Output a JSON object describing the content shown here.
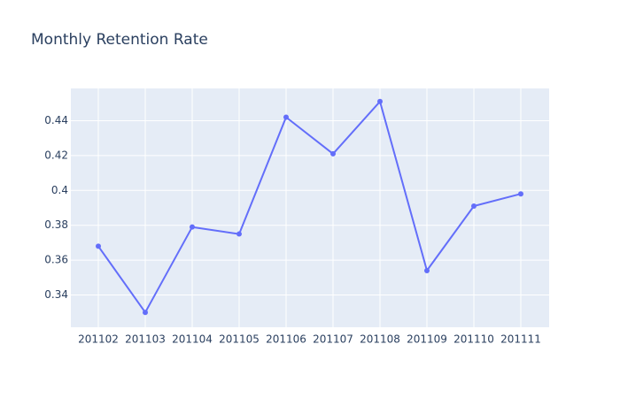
{
  "colors": {
    "background": "#ffffff",
    "plot_background": "#e5ecf6",
    "grid": "#ffffff",
    "line": "#636efa",
    "text": "#2a3f5f"
  },
  "chart_data": {
    "type": "line",
    "title": "Monthly Retention Rate",
    "xlabel": "",
    "ylabel": "",
    "categories": [
      "201102",
      "201103",
      "201104",
      "201105",
      "201106",
      "201107",
      "201108",
      "201109",
      "201110",
      "201111"
    ],
    "series": [
      {
        "values": [
          0.368,
          0.33,
          0.379,
          0.375,
          0.442,
          0.421,
          0.451,
          0.354,
          0.391,
          0.398
        ]
      }
    ],
    "ylim": [
      0.3215,
      0.4585
    ],
    "yticks": [
      0.34,
      0.36,
      0.38,
      0.4,
      0.42,
      0.44
    ],
    "ytick_labels": [
      "0.34",
      "0.36",
      "0.38",
      "0.4",
      "0.42",
      "0.44"
    ],
    "grid": true,
    "legend": "none",
    "markers": true
  }
}
